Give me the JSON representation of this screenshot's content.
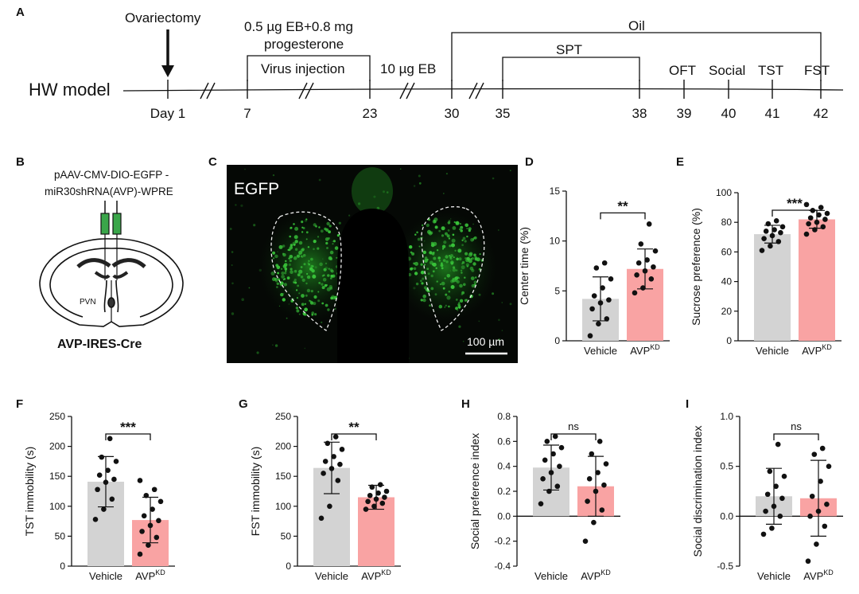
{
  "panels": [
    "A",
    "B",
    "C",
    "D",
    "E",
    "F",
    "G",
    "H",
    "I"
  ],
  "timeline": {
    "model_label": "HW model",
    "day_labels": [
      "Day 1",
      "7",
      "23",
      "30",
      "35",
      "38",
      "39",
      "40",
      "41",
      "42"
    ],
    "ovariectomy": "Ovariectomy",
    "treatment_line1": "0.5 µg EB+0.8 mg",
    "treatment_line2": "progesterone",
    "virus": "Virus injection",
    "eb": "10 µg EB",
    "oil": "Oil",
    "spt": "SPT",
    "tests": [
      "OFT",
      "Social",
      "TST",
      "FST"
    ]
  },
  "panel_b": {
    "construct_line1": "pAAV-CMV-DIO-EGFP -",
    "construct_line2": "miR30shRNA(AVP)-WPRE",
    "region": "PVN",
    "mouse_line": "AVP-IRES-Cre"
  },
  "panel_c": {
    "channel": "EGFP",
    "scale_bar": "100 µm"
  },
  "colors": {
    "vehicle": "#d3d3d3",
    "avp": "#f9a3a3",
    "egfp": "#39c43a",
    "vector": "#3aa64a"
  },
  "chart_data": [
    {
      "type": "bar",
      "panel": "D",
      "ylabel": "Center time (%)",
      "categories": [
        "Vehicle",
        "AVP"
      ],
      "superscript": "KD",
      "ylim": [
        0,
        15
      ],
      "ticks": [
        0,
        5,
        10,
        15
      ],
      "values": [
        4.2,
        7.2
      ],
      "sd": [
        2.2,
        2.0
      ],
      "significance": "**",
      "points": [
        [
          0.5,
          1.7,
          2.2,
          3.2,
          3.8,
          4.1,
          4.5,
          5.3,
          6.2,
          7.3,
          7.8
        ],
        [
          4.8,
          5.3,
          6.2,
          6.6,
          7.0,
          7.4,
          7.8,
          8.1,
          9.0,
          9.7,
          11.7
        ]
      ]
    },
    {
      "type": "bar",
      "panel": "E",
      "ylabel": "Sucrose preference (%)",
      "categories": [
        "Vehicle",
        "AVP"
      ],
      "superscript": "KD",
      "ylim": [
        0,
        100
      ],
      "ticks": [
        0,
        20,
        40,
        60,
        80,
        100
      ],
      "values": [
        72,
        82
      ],
      "sd": [
        6,
        6
      ],
      "significance": "***",
      "points": [
        [
          61,
          64,
          67,
          69,
          71,
          73,
          74,
          75,
          77,
          79,
          81
        ],
        [
          72,
          75,
          77,
          79,
          80,
          82,
          83,
          85,
          86,
          88,
          90,
          92
        ]
      ]
    },
    {
      "type": "bar",
      "panel": "F",
      "ylabel": "TST immobility (s)",
      "categories": [
        "Vehicle",
        "AVP"
      ],
      "superscript": "KD",
      "ylim": [
        0,
        250
      ],
      "ticks": [
        0,
        50,
        100,
        150,
        200,
        250
      ],
      "values": [
        141,
        77
      ],
      "sd": [
        42,
        38
      ],
      "significance": "***",
      "points": [
        [
          78,
          95,
          112,
          128,
          140,
          145,
          152,
          160,
          175,
          182,
          213
        ],
        [
          20,
          35,
          48,
          58,
          68,
          76,
          84,
          95,
          108,
          118,
          128,
          143
        ]
      ]
    },
    {
      "type": "bar",
      "panel": "G",
      "ylabel": "FST immobility (s)",
      "categories": [
        "Vehicle",
        "AVP"
      ],
      "superscript": "KD",
      "ylim": [
        0,
        250
      ],
      "ticks": [
        0,
        50,
        100,
        150,
        200,
        250
      ],
      "values": [
        164,
        115
      ],
      "sd": [
        43,
        20
      ],
      "significance": "**",
      "points": [
        [
          80,
          100,
          143,
          155,
          163,
          170,
          175,
          183,
          195,
          205,
          216
        ],
        [
          95,
          100,
          105,
          108,
          112,
          115,
          118,
          122,
          125,
          132,
          136
        ]
      ]
    },
    {
      "type": "bar",
      "panel": "H",
      "ylabel": "Social preference index",
      "categories": [
        "Vehicle",
        "AVP"
      ],
      "superscript": "KD",
      "ylim": [
        -0.4,
        0.8
      ],
      "ticks": [
        -0.4,
        -0.2,
        0.0,
        0.2,
        0.4,
        0.6,
        0.8
      ],
      "values": [
        0.39,
        0.24
      ],
      "sd": [
        0.18,
        0.24
      ],
      "significance": "ns",
      "points": [
        [
          0.1,
          0.2,
          0.24,
          0.3,
          0.35,
          0.4,
          0.45,
          0.5,
          0.55,
          0.6,
          0.64
        ],
        [
          -0.2,
          -0.05,
          0.05,
          0.12,
          0.2,
          0.25,
          0.3,
          0.35,
          0.42,
          0.5,
          0.6
        ]
      ]
    },
    {
      "type": "bar",
      "panel": "I",
      "ylabel": "Social discrimination index",
      "categories": [
        "Vehicle",
        "AVP"
      ],
      "superscript": "KD",
      "ylim": [
        -0.5,
        1.0
      ],
      "ticks": [
        -0.5,
        0.0,
        0.5,
        1.0
      ],
      "values": [
        0.2,
        0.18
      ],
      "sd": [
        0.28,
        0.38
      ],
      "significance": "ns",
      "points": [
        [
          -0.18,
          -0.12,
          0.0,
          0.05,
          0.1,
          0.18,
          0.22,
          0.3,
          0.4,
          0.45,
          0.72
        ],
        [
          -0.45,
          -0.28,
          -0.1,
          0.0,
          0.05,
          0.12,
          0.2,
          0.35,
          0.5,
          0.62,
          0.68
        ]
      ]
    }
  ]
}
